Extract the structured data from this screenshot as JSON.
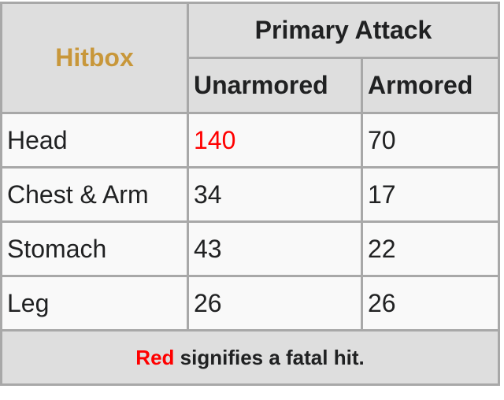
{
  "header": {
    "hitbox": "Hitbox",
    "group": "Primary Attack",
    "columns": [
      "Unarmored",
      "Armored"
    ]
  },
  "rows": [
    {
      "hitbox": "Head",
      "unarmored": "140",
      "armored": "70",
      "unarmored_fatal": true
    },
    {
      "hitbox": "Chest & Arm",
      "unarmored": "34",
      "armored": "17",
      "unarmored_fatal": false
    },
    {
      "hitbox": "Stomach",
      "unarmored": "43",
      "armored": "22",
      "unarmored_fatal": false
    },
    {
      "hitbox": "Leg",
      "unarmored": "26",
      "armored": "26",
      "unarmored_fatal": false
    }
  ],
  "footer": {
    "red_word": "Red",
    "rest": " signifies a fatal hit."
  },
  "colors": {
    "hitbox_header": "#c8973a",
    "fatal": "#ff0000",
    "header_bg": "#dedede",
    "border": "#a8a8a8"
  }
}
